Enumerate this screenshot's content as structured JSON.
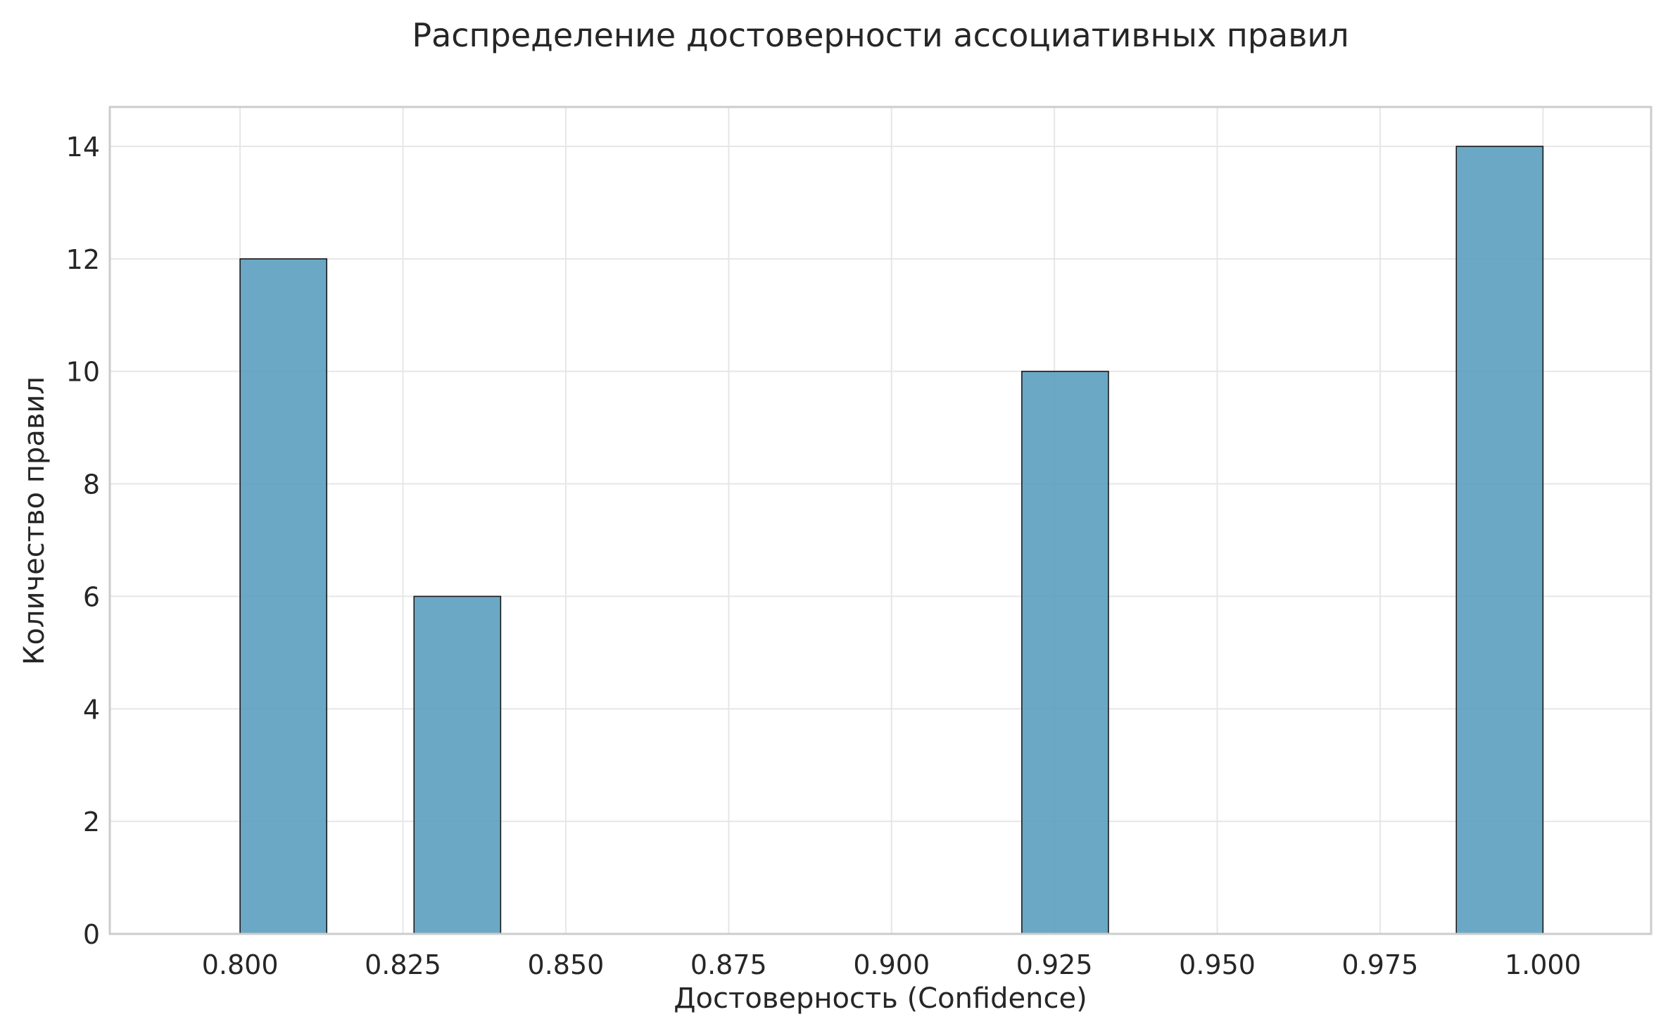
{
  "chart_data": {
    "type": "bar",
    "title": "Распределение достоверности ассоциативных правил",
    "xlabel": "Достоверность (Confidence)",
    "ylabel": "Количество правил",
    "xlim": [
      0.78,
      1.0166
    ],
    "ylim": [
      0,
      14.7
    ],
    "x_ticks": [
      "0.800",
      "0.825",
      "0.850",
      "0.875",
      "0.900",
      "0.925",
      "0.950",
      "0.975",
      "1.000"
    ],
    "y_ticks": [
      "0",
      "2",
      "4",
      "6",
      "8",
      "10",
      "12",
      "14"
    ],
    "bins": [
      {
        "start": 0.8,
        "end": 0.8133,
        "count": 12
      },
      {
        "start": 0.8267,
        "end": 0.84,
        "count": 6
      },
      {
        "start": 0.92,
        "end": 0.9333,
        "count": 10
      },
      {
        "start": 0.9867,
        "end": 1.0,
        "count": 14
      }
    ],
    "grid": true,
    "bar_color": "#5b9fbf"
  }
}
